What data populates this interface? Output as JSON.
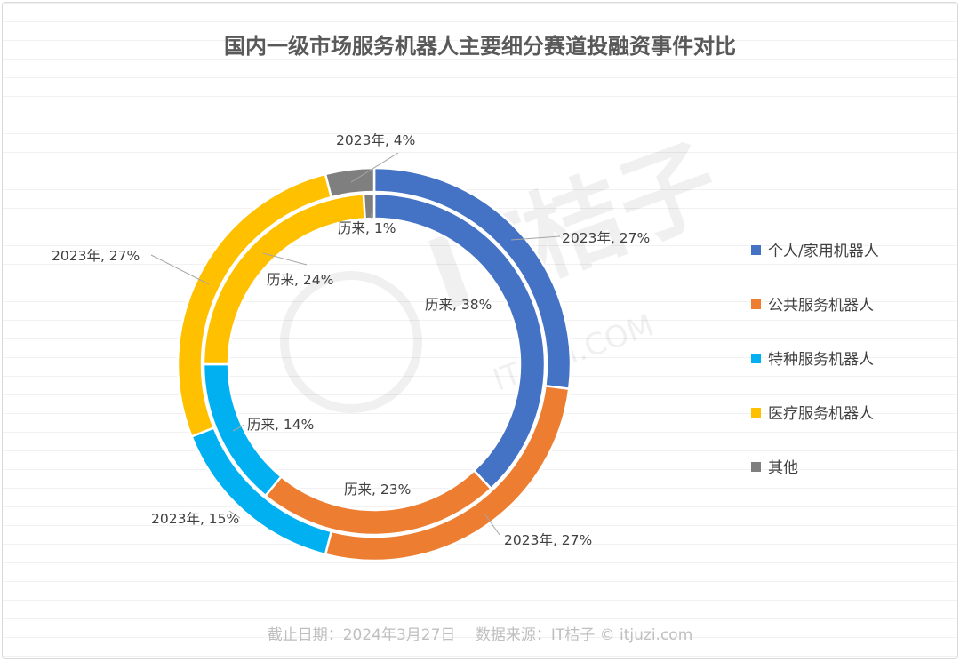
{
  "chart_data": {
    "type": "pie",
    "variant": "double-donut",
    "title": "国内一级市场服务机器人主要细分赛道投融资事件对比",
    "categories": [
      "个人/家用机器人",
      "公共服务机器人",
      "特种服务机器人",
      "医疗服务机器人",
      "其他"
    ],
    "colors": [
      "#4472c4",
      "#ed7d31",
      "#00b0f0",
      "#ffc000",
      "#7f7f7f"
    ],
    "series": [
      {
        "name": "2023年",
        "ring": "outer",
        "values": [
          27,
          27,
          15,
          27,
          4
        ]
      },
      {
        "name": "历来",
        "ring": "inner",
        "values": [
          38,
          23,
          14,
          24,
          1
        ]
      }
    ],
    "unit": "%",
    "legend_position": "right"
  },
  "footer": "截止日期：2024年3月27日　 数据来源：IT桔子 © itjuzi.com",
  "watermark": "IT桔子 ITJUZI.COM"
}
